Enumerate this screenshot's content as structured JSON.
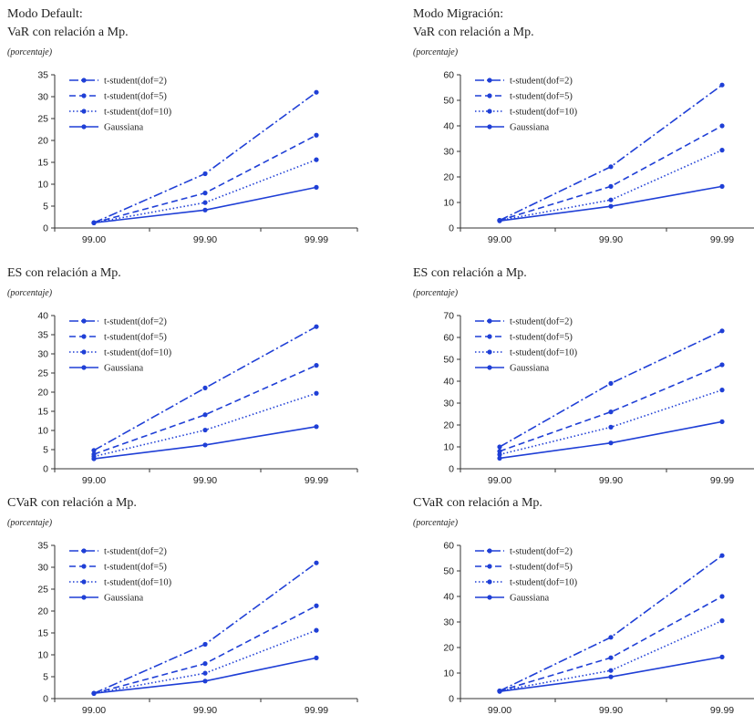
{
  "left_title": "Modo Default:",
  "right_title": "Modo Migración:",
  "chart_data": [
    {
      "type": "line",
      "title": "VaR con relación a Mp.",
      "subtitle": "(porcentaje)",
      "categories": [
        "99.00",
        "99.90",
        "99.99"
      ],
      "ylim": [
        0,
        35
      ],
      "ystep": 5,
      "legend_position": "top-left",
      "series": [
        {
          "name": "t-student(dof=2)",
          "style": "dashdot",
          "values": [
            1.2,
            12.4,
            31.0
          ]
        },
        {
          "name": "t-student(dof=5)",
          "style": "dashed",
          "values": [
            1.2,
            8.0,
            21.2
          ]
        },
        {
          "name": "t-student(dof=10)",
          "style": "dotted",
          "values": [
            1.2,
            5.8,
            15.6
          ]
        },
        {
          "name": "Gaussiana",
          "style": "solid",
          "values": [
            1.2,
            4.1,
            9.3
          ]
        }
      ]
    },
    {
      "type": "line",
      "title": "ES con relación a Mp.",
      "subtitle": "(porcentaje)",
      "categories": [
        "99.00",
        "99.90",
        "99.99"
      ],
      "ylim": [
        0,
        40
      ],
      "ystep": 5,
      "legend_position": "top-left",
      "series": [
        {
          "name": "t-student(dof=2)",
          "style": "dashdot",
          "values": [
            4.8,
            21.1,
            37.1
          ]
        },
        {
          "name": "t-student(dof=5)",
          "style": "dashed",
          "values": [
            3.8,
            14.1,
            27.0
          ]
        },
        {
          "name": "t-student(dof=10)",
          "style": "dotted",
          "values": [
            3.2,
            10.1,
            19.7
          ]
        },
        {
          "name": "Gaussiana",
          "style": "solid",
          "values": [
            2.6,
            6.2,
            11.0
          ]
        }
      ]
    },
    {
      "type": "line",
      "title": "CVaR con relación a Mp.",
      "subtitle": "(porcentaje)",
      "categories": [
        "99.00",
        "99.90",
        "99.99"
      ],
      "ylim": [
        0,
        35
      ],
      "ystep": 5,
      "legend_position": "top-left",
      "series": [
        {
          "name": "t-student(dof=2)",
          "style": "dashdot",
          "values": [
            1.2,
            12.4,
            31.0
          ]
        },
        {
          "name": "t-student(dof=5)",
          "style": "dashed",
          "values": [
            1.2,
            8.0,
            21.2
          ]
        },
        {
          "name": "t-student(dof=10)",
          "style": "dotted",
          "values": [
            1.2,
            5.8,
            15.6
          ]
        },
        {
          "name": "Gaussiana",
          "style": "solid",
          "values": [
            1.2,
            4.0,
            9.3
          ]
        }
      ]
    },
    {
      "type": "line",
      "title": "VaR con relación a Mp.",
      "subtitle": "(porcentaje)",
      "categories": [
        "99.00",
        "99.90",
        "99.99"
      ],
      "ylim": [
        0,
        60
      ],
      "ystep": 10,
      "legend_position": "top-left",
      "series": [
        {
          "name": "t-student(dof=2)",
          "style": "dashdot",
          "values": [
            3.0,
            24.0,
            56.0
          ]
        },
        {
          "name": "t-student(dof=5)",
          "style": "dashed",
          "values": [
            3.0,
            16.3,
            40.0
          ]
        },
        {
          "name": "t-student(dof=10)",
          "style": "dotted",
          "values": [
            3.0,
            11.0,
            30.5
          ]
        },
        {
          "name": "Gaussiana",
          "style": "solid",
          "values": [
            2.8,
            8.5,
            16.3
          ]
        }
      ]
    },
    {
      "type": "line",
      "title": "ES con relación a Mp.",
      "subtitle": "(porcentaje)",
      "categories": [
        "99.00",
        "99.90",
        "99.99"
      ],
      "ylim": [
        0,
        70
      ],
      "ystep": 10,
      "legend_position": "top-left",
      "series": [
        {
          "name": "t-student(dof=2)",
          "style": "dashdot",
          "values": [
            10.0,
            39.0,
            63.0
          ]
        },
        {
          "name": "t-student(dof=5)",
          "style": "dashed",
          "values": [
            8.0,
            26.0,
            47.5
          ]
        },
        {
          "name": "t-student(dof=10)",
          "style": "dotted",
          "values": [
            6.5,
            19.0,
            36.0
          ]
        },
        {
          "name": "Gaussiana",
          "style": "solid",
          "values": [
            4.8,
            11.8,
            21.5
          ]
        }
      ]
    },
    {
      "type": "line",
      "title": "CVaR con relación a Mp.",
      "subtitle": "(porcentaje)",
      "categories": [
        "99.00",
        "99.90",
        "99.99"
      ],
      "ylim": [
        0,
        60
      ],
      "ystep": 10,
      "legend_position": "top-left",
      "series": [
        {
          "name": "t-student(dof=2)",
          "style": "dashdot",
          "values": [
            3.0,
            24.0,
            56.0
          ]
        },
        {
          "name": "t-student(dof=5)",
          "style": "dashed",
          "values": [
            3.0,
            16.0,
            40.0
          ]
        },
        {
          "name": "t-student(dof=10)",
          "style": "dotted",
          "values": [
            3.0,
            11.0,
            30.5
          ]
        },
        {
          "name": "Gaussiana",
          "style": "solid",
          "values": [
            2.8,
            8.5,
            16.3
          ]
        }
      ]
    }
  ],
  "line_color": "#1f3fd6",
  "axis_color": "#333333"
}
